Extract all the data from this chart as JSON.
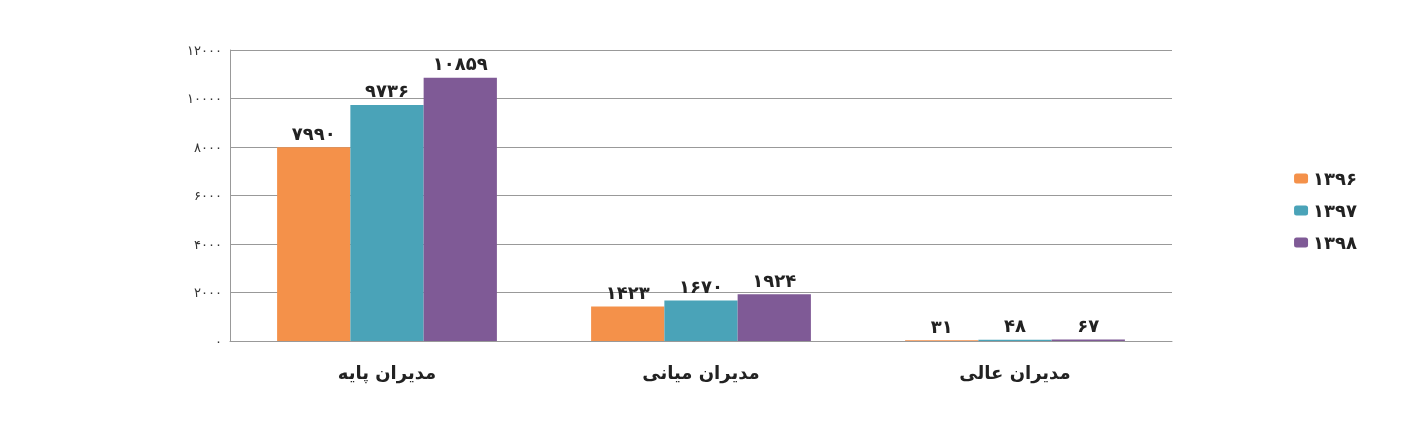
{
  "chart_data": {
    "type": "bar",
    "categories": [
      "مدیران پایه",
      "مدیران میانی",
      "مدیران عالی"
    ],
    "series": [
      {
        "name": "۱۳۹۶",
        "color": "#f4914a",
        "values": [
          7990,
          1423,
          31
        ],
        "value_labels": [
          "۷۹۹۰",
          "۱۴۲۳",
          "۳۱"
        ]
      },
      {
        "name": "۱۳۹۷",
        "color": "#4aa3b8",
        "values": [
          9736,
          1670,
          48
        ],
        "value_labels": [
          "۹۷۳۶",
          "۱۶۷۰",
          "۴۸"
        ]
      },
      {
        "name": "۱۳۹۸",
        "color": "#7f5a96",
        "values": [
          10859,
          1924,
          67
        ],
        "value_labels": [
          "۱۰۸۵۹",
          "۱۹۲۴",
          "۶۷"
        ]
      }
    ],
    "ylim": [
      0,
      12000
    ],
    "yticks": [
      {
        "value": 0,
        "label": "۰"
      },
      {
        "value": 2000,
        "label": "۲۰۰۰"
      },
      {
        "value": 4000,
        "label": "۴۰۰۰"
      },
      {
        "value": 6000,
        "label": "۶۰۰۰"
      },
      {
        "value": 8000,
        "label": "۸۰۰۰"
      },
      {
        "value": 10000,
        "label": "۱۰۰۰۰"
      },
      {
        "value": 12000,
        "label": "۱۲۰۰۰"
      }
    ],
    "grid": "y",
    "legend": "right"
  }
}
